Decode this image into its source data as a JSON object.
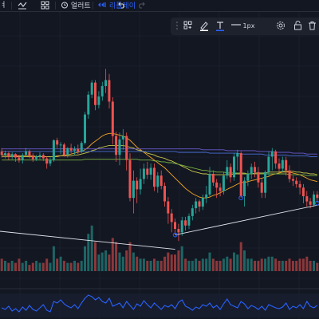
{
  "topbar": {
    "symbol_fragment": "ㅕ",
    "alert_label": "얼러트",
    "replay_label": "리플레이",
    "undo_icon": "undo-icon",
    "redo_icon": "redo-icon"
  },
  "drawing_toolbar": {
    "line_width_label": "1px",
    "icons": [
      "grip-icon",
      "template-icon",
      "brush-icon",
      "text-color-icon",
      "line-style-icon",
      "settings-icon",
      "lock-icon",
      "delete-icon"
    ]
  },
  "colors": {
    "background": "#131722",
    "grid": "#1f2535",
    "bull": "#26a69a",
    "bear": "#ef5350",
    "ma_orange": "#f5a623",
    "ma_yellow": "#c9c74a",
    "ma_green": "#7cb342",
    "ma_purple": "#6a5acd",
    "ma_blue": "#4a6fd8",
    "trendline": "#e0e3eb",
    "oscillator": "#2962ff",
    "accent": "#2962ff"
  },
  "chart_data": {
    "type": "candlestick",
    "candles": [
      [
        182,
        178,
        186,
        175
      ],
      [
        178,
        180,
        183,
        174
      ],
      [
        180,
        176,
        182,
        172
      ],
      [
        176,
        179,
        181,
        173
      ],
      [
        179,
        175,
        180,
        170
      ],
      [
        175,
        172,
        178,
        169
      ],
      [
        172,
        178,
        180,
        168
      ],
      [
        178,
        182,
        186,
        176
      ],
      [
        182,
        177,
        184,
        174
      ],
      [
        177,
        173,
        180,
        170
      ],
      [
        173,
        176,
        178,
        171
      ],
      [
        176,
        178,
        181,
        173
      ],
      [
        178,
        174,
        180,
        171
      ],
      [
        174,
        168,
        176,
        162
      ],
      [
        168,
        172,
        175,
        165
      ],
      [
        172,
        195,
        196,
        170
      ],
      [
        195,
        190,
        198,
        186
      ],
      [
        190,
        190,
        193,
        179
      ],
      [
        190,
        178,
        192,
        176
      ],
      [
        178,
        186,
        187,
        175
      ],
      [
        186,
        183,
        191,
        180
      ],
      [
        183,
        185,
        188,
        178
      ],
      [
        185,
        182,
        190,
        179
      ],
      [
        182,
        192,
        194,
        180
      ],
      [
        192,
        225,
        228,
        190
      ],
      [
        225,
        248,
        252,
        220
      ],
      [
        248,
        262,
        265,
        244
      ],
      [
        262,
        236,
        265,
        230
      ],
      [
        236,
        246,
        252,
        232
      ],
      [
        246,
        258,
        263,
        241
      ],
      [
        258,
        265,
        278,
        250
      ],
      [
        265,
        240,
        272,
        232
      ],
      [
        240,
        200,
        245,
        190
      ],
      [
        200,
        178,
        205,
        170
      ],
      [
        178,
        196,
        204,
        166
      ],
      [
        196,
        200,
        208,
        184
      ],
      [
        200,
        172,
        204,
        160
      ],
      [
        172,
        128,
        180,
        124
      ],
      [
        128,
        148,
        160,
        110
      ],
      [
        148,
        138,
        152,
        122
      ],
      [
        138,
        150,
        162,
        132
      ],
      [
        150,
        162,
        168,
        144
      ],
      [
        162,
        155,
        170,
        150
      ],
      [
        155,
        163,
        168,
        149
      ],
      [
        163,
        141,
        168,
        136
      ],
      [
        141,
        154,
        158,
        134
      ],
      [
        154,
        142,
        160,
        138
      ],
      [
        142,
        124,
        146,
        118
      ],
      [
        124,
        110,
        129,
        98
      ],
      [
        110,
        100,
        115,
        88
      ],
      [
        100,
        92,
        104,
        85
      ],
      [
        92,
        88,
        98,
        78
      ],
      [
        88,
        102,
        106,
        84
      ],
      [
        102,
        96,
        106,
        90
      ],
      [
        96,
        107,
        110,
        92
      ],
      [
        107,
        116,
        120,
        102
      ],
      [
        116,
        124,
        128,
        110
      ],
      [
        124,
        118,
        126,
        112
      ],
      [
        118,
        128,
        132,
        114
      ],
      [
        128,
        132,
        142,
        122
      ],
      [
        132,
        156,
        164,
        130
      ],
      [
        156,
        146,
        160,
        142
      ],
      [
        146,
        140,
        150,
        128
      ],
      [
        140,
        136,
        145,
        130
      ],
      [
        136,
        154,
        158,
        132
      ],
      [
        154,
        164,
        172,
        150
      ],
      [
        164,
        152,
        168,
        146
      ],
      [
        152,
        176,
        180,
        148
      ],
      [
        176,
        180,
        184,
        160
      ],
      [
        180,
        130,
        182,
        128
      ],
      [
        130,
        148,
        152,
        118
      ],
      [
        148,
        156,
        160,
        142
      ],
      [
        156,
        164,
        168,
        150
      ],
      [
        164,
        158,
        170,
        152
      ],
      [
        158,
        146,
        164,
        140
      ],
      [
        146,
        134,
        150,
        128
      ],
      [
        134,
        158,
        160,
        128
      ],
      [
        158,
        176,
        182,
        154
      ],
      [
        176,
        182,
        186,
        160
      ],
      [
        182,
        168,
        184,
        162
      ],
      [
        168,
        162,
        174,
        158
      ],
      [
        162,
        172,
        176,
        158
      ],
      [
        172,
        160,
        176,
        154
      ],
      [
        160,
        150,
        166,
        146
      ],
      [
        150,
        148,
        154,
        142
      ],
      [
        148,
        144,
        152,
        140
      ],
      [
        144,
        140,
        148,
        132
      ],
      [
        140,
        130,
        144,
        122
      ],
      [
        130,
        124,
        136,
        118
      ],
      [
        124,
        120,
        128,
        116
      ],
      [
        120,
        132,
        136,
        118
      ],
      [
        132,
        128,
        136,
        122
      ]
    ],
    "volume": [
      6,
      5,
      4,
      5,
      4,
      6,
      4,
      5,
      3,
      4,
      5,
      4,
      4,
      6,
      4,
      12,
      6,
      7,
      5,
      4,
      4,
      5,
      4,
      5,
      12,
      18,
      22,
      14,
      8,
      9,
      10,
      8,
      16,
      14,
      9,
      7,
      10,
      14,
      9,
      7,
      6,
      6,
      5,
      5,
      6,
      5,
      5,
      7,
      9,
      8,
      8,
      10,
      12,
      6,
      5,
      5,
      6,
      5,
      6,
      6,
      9,
      6,
      5,
      5,
      6,
      7,
      6,
      9,
      8,
      14,
      10,
      6,
      6,
      5,
      5,
      6,
      6,
      7,
      7,
      6,
      5,
      5,
      5,
      6,
      5,
      5,
      6,
      6,
      7,
      5,
      5,
      4
    ],
    "moving_averages": [
      {
        "values": [
          178,
          178,
          178,
          178,
          177,
          177,
          177,
          177,
          177,
          177,
          176,
          176,
          176,
          176,
          176,
          176,
          177,
          177,
          178,
          178,
          179,
          180,
          181,
          182,
          184,
          187,
          191,
          194,
          197,
          200,
          202,
          203,
          203,
          202,
          201,
          200,
          198,
          195,
          191,
          187,
          184,
          181,
          178,
          175,
          172,
          169,
          166,
          163,
          159,
          155,
          151,
          147,
          143,
          139,
          136,
          133,
          131,
          129,
          128,
          128,
          129,
          131,
          132,
          134,
          136,
          138,
          140,
          142,
          144,
          146,
          146,
          147,
          148,
          149,
          150,
          151,
          152,
          153,
          155,
          156,
          157,
          158,
          158,
          158,
          157,
          156,
          155,
          153,
          151,
          149,
          148,
          147
        ]
      },
      {
        "values": [
          176,
          176,
          176,
          176,
          176,
          176,
          176,
          176,
          176,
          176,
          176,
          176,
          176,
          176,
          176,
          176,
          176,
          177,
          177,
          177,
          177,
          178,
          178,
          179,
          180,
          181,
          183,
          184,
          186,
          187,
          188,
          189,
          189,
          189,
          189,
          189,
          188,
          187,
          186,
          184,
          183,
          182,
          180,
          179,
          178,
          176,
          175,
          174,
          172,
          171,
          169,
          167,
          165,
          163,
          161,
          159,
          158,
          157,
          156,
          156,
          155,
          155,
          155,
          155,
          155,
          155,
          155,
          156,
          156,
          156,
          156,
          156,
          156,
          157,
          157,
          157,
          157,
          158,
          158,
          158,
          158,
          159,
          159,
          159,
          159,
          158,
          158,
          157,
          157,
          156,
          156,
          155
        ]
      },
      {
        "values": [
          172,
          172,
          172,
          172,
          172,
          172,
          172,
          172,
          172,
          172,
          172,
          172,
          172,
          172,
          172,
          172,
          172,
          172,
          172,
          172,
          172,
          172,
          172,
          172,
          173,
          173,
          173,
          173,
          173,
          173,
          173,
          173,
          173,
          173,
          173,
          173,
          173,
          173,
          173,
          173,
          172,
          172,
          172,
          172,
          171,
          171,
          170,
          170,
          169,
          169,
          168,
          167,
          166,
          165,
          164,
          163,
          162,
          161,
          160,
          160,
          159,
          159,
          158,
          158,
          158,
          157,
          157,
          157,
          157,
          157,
          157,
          156,
          156,
          156,
          156,
          156,
          156,
          156,
          156,
          156,
          156,
          156,
          156,
          155,
          155,
          155,
          155,
          155,
          154,
          154,
          154,
          154
        ]
      },
      {
        "values": [
          185,
          185,
          185,
          185,
          185,
          185,
          185,
          185,
          185,
          185,
          185,
          185,
          185,
          185,
          185,
          185,
          185,
          185,
          185,
          185,
          185,
          185,
          185,
          185,
          185,
          185,
          185,
          185,
          185,
          185,
          185,
          185,
          185,
          185,
          185,
          185,
          185,
          185,
          185,
          185,
          185,
          185,
          185,
          185,
          185,
          185,
          185,
          185,
          185,
          185,
          185,
          185,
          185,
          185,
          185,
          185,
          185,
          185,
          184,
          184,
          184,
          184,
          184,
          184,
          184,
          183,
          183,
          183,
          183,
          183,
          183,
          183,
          183,
          183,
          182,
          182,
          182,
          182,
          182,
          181,
          181,
          181,
          181,
          181,
          180,
          180,
          180,
          180,
          179,
          179,
          179,
          179
        ]
      },
      {
        "values": [
          182,
          182,
          182,
          182,
          182,
          182,
          182,
          182,
          182,
          182,
          182,
          182,
          182,
          182,
          182,
          182,
          182,
          182,
          182,
          182,
          182,
          182,
          182,
          182,
          182,
          182,
          182,
          182,
          182,
          182,
          182,
          182,
          182,
          182,
          182,
          182,
          182,
          182,
          182,
          182,
          182,
          182,
          182,
          182,
          182,
          182,
          182,
          182,
          182,
          182,
          182,
          181,
          181,
          181,
          181,
          181,
          181,
          181,
          181,
          181,
          180,
          180,
          180,
          180,
          180,
          180,
          180,
          180,
          180,
          179,
          179,
          179,
          179,
          179,
          179,
          179,
          178,
          178,
          178,
          178,
          178,
          178,
          178,
          177,
          177,
          177,
          177,
          177,
          177,
          176,
          176,
          176
        ]
      }
    ],
    "oscillator": [
      22,
      20,
      24,
      18,
      21,
      17,
      23,
      19,
      25,
      20,
      18,
      22,
      26,
      19,
      17,
      30,
      28,
      32,
      27,
      24,
      22,
      26,
      21,
      28,
      34,
      38,
      36,
      32,
      35,
      30,
      28,
      34,
      24,
      26,
      28,
      22,
      30,
      25,
      20,
      27,
      24,
      31,
      26,
      22,
      28,
      24,
      20,
      25,
      23,
      26,
      21,
      29,
      32,
      24,
      22,
      19,
      23,
      21,
      26,
      24,
      28,
      22,
      25,
      20,
      27,
      33,
      26,
      24,
      22,
      30,
      27,
      21,
      25,
      23,
      20,
      24,
      19,
      26,
      24,
      22,
      21,
      23,
      28,
      20,
      24,
      22,
      26,
      21,
      30,
      24,
      22,
      25
    ]
  }
}
